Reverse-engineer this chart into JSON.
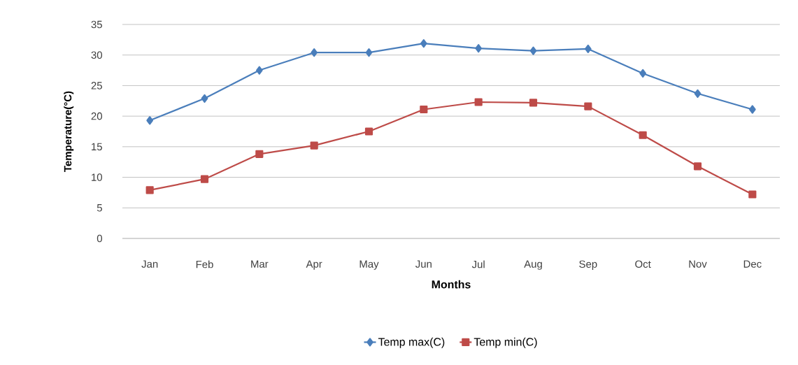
{
  "chart_data": {
    "type": "line",
    "xlabel": "Months",
    "ylabel": "Temperature(°C)",
    "categories": [
      "Jan",
      "Feb",
      "Mar",
      "Apr",
      "May",
      "Jun",
      "Jul",
      "Aug",
      "Sep",
      "Oct",
      "Nov",
      "Dec"
    ],
    "series": [
      {
        "name": "Temp max(C)",
        "color": "#4a7ebb",
        "marker": "diamond",
        "values": [
          19.3,
          22.9,
          27.5,
          30.4,
          30.4,
          31.9,
          31.1,
          30.7,
          31.0,
          27.0,
          23.7,
          21.1
        ]
      },
      {
        "name": "Temp min(C)",
        "color": "#be4b48",
        "marker": "square",
        "values": [
          7.9,
          9.7,
          13.8,
          15.2,
          17.5,
          21.1,
          22.3,
          22.2,
          21.6,
          16.9,
          11.8,
          7.2
        ]
      }
    ],
    "ylim": [
      0,
      35
    ],
    "yticks": [
      0,
      5,
      10,
      15,
      20,
      25,
      30,
      35
    ],
    "grid": "y",
    "legend": "bottom"
  }
}
